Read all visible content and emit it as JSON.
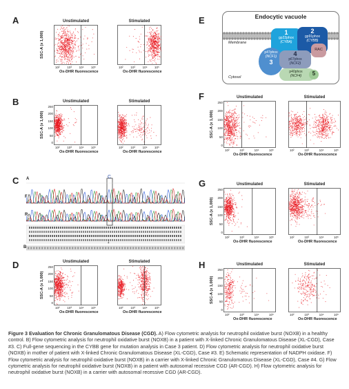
{
  "panels": {
    "A": "A",
    "B": "B",
    "C": "C",
    "D": "D",
    "E": "E",
    "F": "F",
    "G": "G",
    "H": "H"
  },
  "flow": {
    "unstimulated": "Unstimulated",
    "stimulated": "Stimulated",
    "xlabel": "Ox-DHR fluorescence",
    "ylabel": "SSC-A (x 1,000)",
    "yticks": [
      "250",
      "200",
      "150",
      "100",
      "50",
      "0"
    ],
    "xticks": [
      "10²",
      "10³",
      "10⁴",
      "10⁵"
    ]
  },
  "sequencing": {
    "track_a": "A",
    "track_f": "F",
    "track_r": "R",
    "track_b": "B",
    "marker": "C",
    "arrow": "↓"
  },
  "vacuole": {
    "title": "Endocytic vacuole",
    "membrane": "Membrane",
    "cytosol": "Cytosol",
    "p22_num": "1",
    "p22_name": "gp22phox",
    "p22_gene": "(CYBA)",
    "gp91_num": "2",
    "gp91_name": "gp91phox",
    "gp91_gene": "(CYBB)",
    "p47_name": "p47phox",
    "p47_gene": "(NCF1)",
    "p47_num": "3",
    "p67_num": "4",
    "p67_name": "p67phox",
    "p67_gene": "(NCF2)",
    "rac": "RAC",
    "p40_name": "p40phox",
    "p40_gene": "(NCF4)",
    "p40_num": "5"
  },
  "caption": {
    "lead": "Figure 3 Evaluation for Chronic Granulomatous Disease (CGD).",
    "text": " A) Flow cytometric analysis for neutrophil oxidative burst (NOXB) in a healthy control. B) Flow cytometric analysis for neutrophil oxidative burst (NOXB) in a patient with X-linked Chronic Granulomatous Disease (XL-CGD), Case #3. C) Full-gene sequencing in the CYBB gene for mutation analysis in Case 3 patient. D) Flow cytometric analysis for neutrophil oxidative burst (NOXB) in mother of patient with X-linked Chronic Granulomatous Disease (XL-CGD), Case #3. E) Schematic representation of NADPH oxidase. F) Flow cytometric analysis for neutrophil oxidative burst (NOXB) in a carrier with X-linked Chronic Granulomatous Disease (XL-CGD), Case #4. G) Flow cytometric analysis for neutrophil oxidative burst (NOXB) in a patient with autosomal recessive CGD (AR-CGD). H) Flow cytometric analysis for neutrophil oxidative burst (NOXB) in a carrier with autosomal recessive CGD (AR-CGD)."
  },
  "colors": {
    "dot": "#e8131b",
    "membrane": "#9a9a9a",
    "p22": "#1fa3dc",
    "gp91": "#1c5aa6",
    "p47": "#5aa0d8",
    "p67": "#8f9fbf",
    "rac": "#c99aa0",
    "p40": "#b9d8b3"
  }
}
